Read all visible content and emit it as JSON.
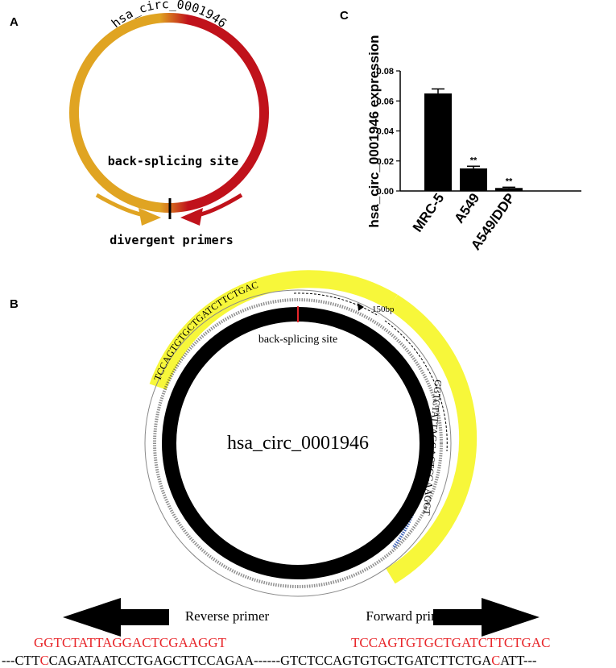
{
  "panel_a": {
    "label": "A",
    "circ_name": "hsa_circ_0001946",
    "back_splicing_label": "back-splicing site",
    "primers_label": "divergent primers",
    "colors": {
      "orange": "#e0a422",
      "red": "#c0121b"
    }
  },
  "panel_b": {
    "label": "B",
    "circ_name": "hsa_circ_0001946",
    "back_splicing_label": "back-splicing site",
    "amplicon_label": "150bp",
    "outer_reverse_primer": "TCCAGTGTGCTGATCTTCTGAC",
    "outer_forward_primer": "GGTCTATTAGGACTCGAAGGT",
    "reverse_primer_label": "Reverse primer",
    "forward_primer_label": "Forward primer",
    "reverse_primer_seq": "GGTCTATTAGGACTCGAAGGT",
    "forward_primer_seq": "TCCAGTGTGCTGATCTTCTGAC",
    "template_left_pre": "---CTT",
    "template_left_mark": "C",
    "template_left_post": "CAGATAATCCTGAGCTTCCAGAA------",
    "template_right_pre": "GTCTCCAGTGTGCTGATCTTCTGA",
    "template_right_mark": "C",
    "template_right_post": "ATT---",
    "colors": {
      "highlight": "#f7f73a",
      "primer_red": "#e8262a",
      "ring": "#000000"
    }
  },
  "panel_c": {
    "label": "C",
    "chart_data": {
      "type": "bar",
      "categories": [
        "MRC-5",
        "A549",
        "A549/DDP"
      ],
      "values": [
        0.065,
        0.015,
        0.002
      ],
      "errors": [
        0.003,
        0.0015,
        0.0005
      ],
      "annotations": [
        "",
        "**",
        "**"
      ],
      "ylabel": "hsa_circ_0001946 expression",
      "xlabel": "",
      "ylim": [
        0,
        0.08
      ],
      "yticks": [
        "0.00",
        "0.02",
        "0.04",
        "0.06",
        "0.08"
      ],
      "grid": false,
      "bar_color": "#000000"
    }
  }
}
